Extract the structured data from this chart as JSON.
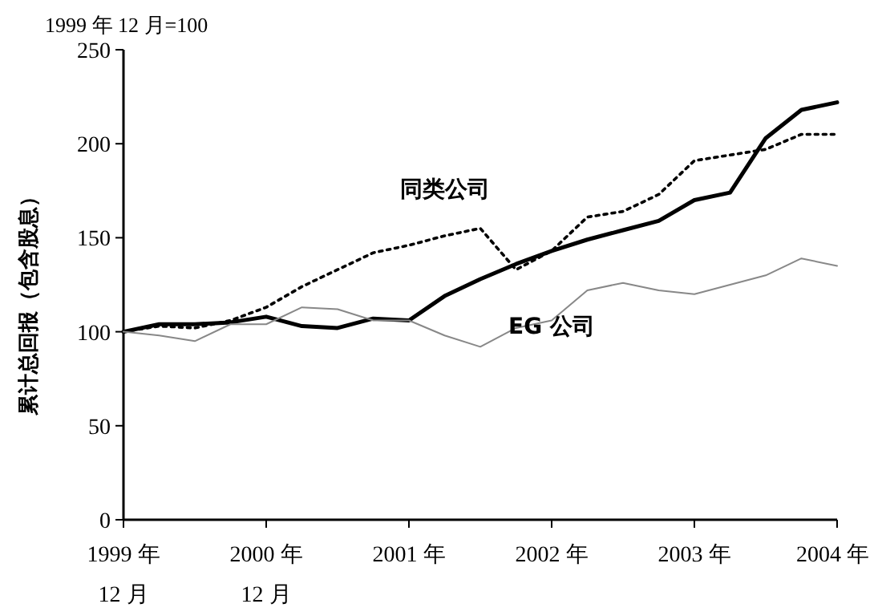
{
  "chart_data": {
    "type": "line",
    "title": "1999 年 12 月=100",
    "ylabel": "累计总回报（包含股息）",
    "x": [
      "1999-12",
      "2000-03",
      "2000-06",
      "2000-09",
      "2000-12",
      "2001-03",
      "2001-06",
      "2001-09",
      "2001-12",
      "2002-03",
      "2002-06",
      "2002-09",
      "2002-12",
      "2003-03",
      "2003-06",
      "2003-09",
      "2003-12",
      "2004-03",
      "2004-06",
      "2004-09",
      "2004-12"
    ],
    "xlim": [
      "1999-12",
      "2004-12"
    ],
    "xticks": [
      {
        "value": "1999-12",
        "label": "1999 年\n12 月"
      },
      {
        "value": "2000-12",
        "label": "2000 年\n12 月"
      },
      {
        "value": "2001-12",
        "label": "2001 年"
      },
      {
        "value": "2002-12",
        "label": "2002 年"
      },
      {
        "value": "2003-12",
        "label": "2003 年"
      },
      {
        "value": "2004-12",
        "label": "2004 年"
      }
    ],
    "ylim": [
      0,
      250
    ],
    "yticks": [
      0,
      50,
      100,
      150,
      200,
      250
    ],
    "grid": false,
    "series": [
      {
        "color": "#000000",
        "line_style": "solid",
        "values": [
          100,
          104,
          104,
          105,
          108,
          103,
          102,
          107,
          106,
          119,
          128,
          136,
          143,
          149,
          154,
          159,
          170,
          174,
          203,
          218,
          222
        ]
      },
      {
        "name": "同类公司",
        "color": "#000000",
        "line_style": "dotted",
        "values": [
          100,
          103,
          102,
          106,
          113,
          124,
          133,
          142,
          146,
          151,
          155,
          133,
          143,
          161,
          164,
          173,
          191,
          194,
          197,
          205,
          205
        ]
      },
      {
        "name": "EG 公司",
        "color": "#888888",
        "line_style": "solid",
        "values": [
          100,
          98,
          95,
          104,
          104,
          113,
          112,
          106,
          106,
          98,
          92,
          102,
          106,
          122,
          126,
          122,
          120,
          125,
          130,
          139,
          135
        ]
      }
    ]
  }
}
